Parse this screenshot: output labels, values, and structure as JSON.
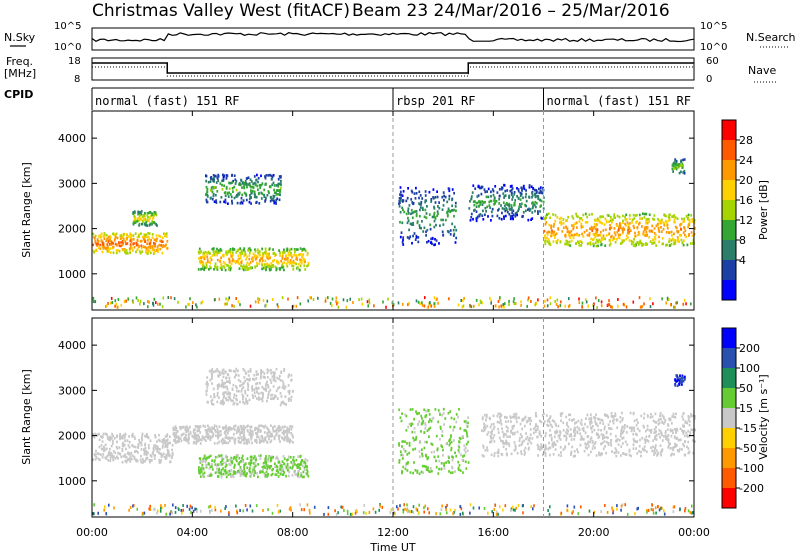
{
  "header": {
    "title": "Christmas Valley West (fitACF)",
    "beam_info": "Beam 23  24/Mar/2016 – 25/Mar/2016"
  },
  "left_labels": {
    "nsky": "N.Sky",
    "freq": "Freq.",
    "freq_unit": "[MHz]",
    "cpid": "CPID"
  },
  "right_labels": {
    "nsearch": "N.Search",
    "nave": "Nave"
  },
  "mini_ticks": {
    "noise_left": [
      "10^5",
      "10^0"
    ],
    "noise_right": [
      "10^5",
      "10^0"
    ],
    "freq_left": [
      "18",
      "8"
    ],
    "nave_right": [
      "60",
      "0"
    ]
  },
  "modes": [
    {
      "label": "normal (fast) 151 RF",
      "start_hour": 0
    },
    {
      "label": "rbsp 201 RF",
      "start_hour": 12
    },
    {
      "label": "normal (fast) 151 RF",
      "start_hour": 18
    }
  ],
  "axes": {
    "ylabel": "Slant Range [km]",
    "yticks": [
      "1000",
      "2000",
      "3000",
      "4000"
    ],
    "xlabel": "Time UT",
    "xticks": [
      "00:00",
      "04:00",
      "08:00",
      "12:00",
      "16:00",
      "20:00",
      "00:00"
    ]
  },
  "colorbars": {
    "power": {
      "label": "Power [dB]",
      "ticks": [
        "28",
        "24",
        "20",
        "16",
        "12",
        "8",
        "4"
      ],
      "colors": [
        "#ff0000",
        "#ff5a00",
        "#ff9900",
        "#ffd000",
        "#a6d400",
        "#33a633",
        "#2a7e6a",
        "#1b3fa5",
        "#0000ff"
      ]
    },
    "velocity": {
      "label": "Velocity [m s⁻¹]",
      "ticks": [
        "200",
        "100",
        "50",
        "15",
        "-15",
        "-50",
        "-100",
        "-200"
      ],
      "colors": [
        "#0000ff",
        "#2a50b0",
        "#1f8f5a",
        "#66cc33",
        "#c8c8c8",
        "#ffd000",
        "#ff9900",
        "#ff5a00",
        "#ff0000"
      ]
    }
  },
  "chart_data": [
    {
      "type": "heatmap",
      "panel": "power",
      "x_unit": "hours UT",
      "xlim": [
        0,
        24
      ],
      "ylim": [
        200,
        4600
      ],
      "value_unit": "dB",
      "regions": [
        {
          "t0": 0.0,
          "t1": 3.0,
          "r_center": 1700,
          "r_width": 280,
          "value": 24
        },
        {
          "t0": 4.2,
          "t1": 8.6,
          "r_center": 1350,
          "r_width": 300,
          "value": 20
        },
        {
          "t0": 1.6,
          "t1": 2.6,
          "r_center": 2250,
          "r_width": 200,
          "value": 16
        },
        {
          "t0": 4.5,
          "t1": 7.5,
          "r_center": 2900,
          "r_width": 400,
          "value": 10
        },
        {
          "t0": 12.2,
          "t1": 14.5,
          "r_center": 2300,
          "r_width": 800,
          "value": 8
        },
        {
          "t0": 15.0,
          "t1": 18.0,
          "r_center": 2600,
          "r_width": 500,
          "value": 8
        },
        {
          "t0": 18.0,
          "t1": 24.0,
          "r_center": 2000,
          "r_width": 450,
          "value": 22
        },
        {
          "t0": 23.1,
          "t1": 23.6,
          "r_center": 3400,
          "r_width": 200,
          "value": 12
        }
      ]
    },
    {
      "type": "heatmap",
      "panel": "velocity",
      "x_unit": "hours UT",
      "xlim": [
        0,
        24
      ],
      "ylim": [
        200,
        4600
      ],
      "value_unit": "m/s",
      "regions": [
        {
          "t0": 0.0,
          "t1": 3.2,
          "r_center": 1750,
          "r_width": 400,
          "value": 0
        },
        {
          "t0": 3.2,
          "t1": 8.0,
          "r_center": 2050,
          "r_width": 250,
          "value": 0
        },
        {
          "t0": 4.2,
          "t1": 8.6,
          "r_center": 1350,
          "r_width": 300,
          "value": 20
        },
        {
          "t0": 4.5,
          "t1": 8.0,
          "r_center": 3100,
          "r_width": 500,
          "value": 0
        },
        {
          "t0": 12.2,
          "t1": 15.0,
          "r_center": 1900,
          "r_width": 900,
          "value": 20
        },
        {
          "t0": 15.5,
          "t1": 24.0,
          "r_center": 2050,
          "r_width": 600,
          "value": 0
        },
        {
          "t0": 23.2,
          "t1": 23.6,
          "r_center": 3250,
          "r_width": 150,
          "value": 200
        }
      ]
    }
  ]
}
